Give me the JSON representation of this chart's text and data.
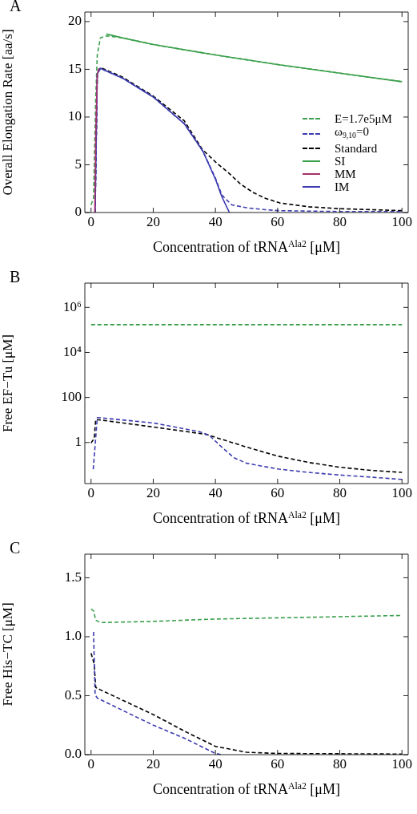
{
  "chart_data": [
    {
      "type": "line",
      "title": "A",
      "xlabel": "Concentration of tRNA$^{Ala2}$ [μM]",
      "ylabel": "Overall Elongation Rate [aa/s]",
      "xlim": [
        -2,
        102
      ],
      "xticks": [
        0,
        20,
        40,
        60,
        80,
        100
      ],
      "ylim": [
        0,
        21
      ],
      "yticks": [
        0,
        5,
        10,
        15,
        20
      ],
      "grid": false,
      "legend": "right",
      "series": [
        {
          "name": "E=1.7e5μM",
          "color": "#3ba04c",
          "line_style": "dashed",
          "x": [
            0,
            0.8,
            1.5,
            2,
            3,
            5,
            10,
            20,
            40,
            60,
            80,
            100
          ],
          "values": [
            0.8,
            1.5,
            12,
            16.5,
            18.3,
            18.5,
            18.3,
            17.6,
            16.5,
            15.5,
            14.6,
            13.7
          ]
        },
        {
          "name": "ω$_{9,10}$=0",
          "color": "#3c3cb0",
          "line_style": "dashed",
          "x": [
            1.3,
            2,
            3,
            10,
            20,
            30,
            36,
            40,
            42,
            43,
            45.3,
            50,
            56,
            60,
            80,
            100
          ],
          "values": [
            0,
            14.5,
            15.1,
            14.1,
            12.1,
            9.3,
            6.4,
            3.6,
            1.9,
            1.5,
            0.8,
            0.5,
            0.3,
            0.2,
            0.1,
            0.1
          ]
        },
        {
          "name": "Standard",
          "color": "#000000",
          "line_style": "dashed",
          "x": [
            1.3,
            2,
            3,
            10,
            20,
            30,
            35.8,
            40,
            44.4,
            48,
            52.1,
            56,
            60.7,
            70,
            80,
            90,
            100
          ],
          "values": [
            0,
            14.5,
            15.2,
            14.2,
            12.2,
            9.6,
            6.6,
            5.3,
            4.1,
            3.0,
            2.1,
            1.5,
            1.0,
            0.6,
            0.4,
            0.3,
            0.2
          ]
        },
        {
          "name": "SI",
          "color": "#3ba04c",
          "line_style": "solid",
          "x": [
            4.9,
            10,
            20,
            40,
            60,
            80,
            100
          ],
          "values": [
            18.7,
            18.3,
            17.6,
            16.5,
            15.5,
            14.6,
            13.7
          ]
        },
        {
          "name": "MM",
          "color": "#a8306c",
          "line_style": "solid",
          "x": [
            1.2,
            1.5,
            2,
            2.5
          ],
          "values": [
            0,
            8,
            14.5,
            15.1
          ]
        },
        {
          "name": "IM",
          "color": "#3c3cb0",
          "line_style": "solid",
          "x": [
            1.3,
            2,
            3,
            10,
            20,
            30,
            36,
            40,
            42,
            44.5
          ],
          "values": [
            0,
            14.5,
            15.1,
            14.1,
            12.1,
            9.3,
            6.4,
            3.5,
            1.7,
            0
          ]
        }
      ]
    },
    {
      "type": "line",
      "title": "B",
      "xlabel": "Concentration of tRNA$^{Ala2}$ [μM]",
      "ylabel": "Free EF−Tu [μM]",
      "log": "y",
      "xlim": [
        -2,
        102
      ],
      "xticks": [
        0,
        20,
        40,
        60,
        80,
        100
      ],
      "ylim": [
        0.015,
        12000000
      ],
      "yticks": [
        1,
        100,
        {
          "value": 10000,
          "label": "10⁴"
        },
        {
          "value": 1000000,
          "label": "10⁶"
        }
      ],
      "grid": false,
      "series": [
        {
          "color": "#3ba04c",
          "line_style": "dashed",
          "x": [
            0,
            100
          ],
          "values": [
            170000,
            170000
          ]
        },
        {
          "color": "#3c3cb0",
          "line_style": "dashed",
          "x": [
            0.7,
            2,
            3,
            20,
            35,
            38,
            42,
            46,
            50,
            60,
            70,
            80,
            90,
            100
          ],
          "values": [
            0.065,
            12.7,
            12.5,
            7.4,
            3,
            2.1,
            0.63,
            0.21,
            0.12,
            0.067,
            0.047,
            0.036,
            0.029,
            0.023
          ]
        },
        {
          "color": "#000000",
          "line_style": "dashed",
          "x": [
            0,
            1,
            1.5,
            3,
            20,
            37,
            40,
            50,
            60,
            70,
            80,
            90,
            100
          ],
          "values": [
            0.95,
            1.5,
            10.5,
            10,
            4.9,
            2.3,
            1.7,
            0.63,
            0.25,
            0.13,
            0.08,
            0.058,
            0.047
          ]
        }
      ]
    },
    {
      "type": "line",
      "title": "C",
      "xlabel": "Concentration of tRNA$^{Ala2}$ [μM]",
      "ylabel": "Free His−TC [μM]",
      "xlim": [
        -2,
        102
      ],
      "xticks": [
        0,
        20,
        40,
        60,
        80,
        100
      ],
      "ylim": [
        0,
        1.7
      ],
      "yticks": [
        {
          "value": 0,
          "label": "0.0"
        },
        0.5,
        {
          "value": 1,
          "label": "1.0"
        },
        1.5
      ],
      "grid": false,
      "series": [
        {
          "color": "#3ba04c",
          "line_style": "dashed",
          "x": [
            0,
            0.8,
            1.5,
            3,
            20,
            40,
            60,
            80,
            100
          ],
          "values": [
            1.235,
            1.22,
            1.14,
            1.12,
            1.13,
            1.15,
            1.16,
            1.17,
            1.18
          ]
        },
        {
          "color": "#3c3cb0",
          "line_style": "dashed",
          "x": [
            0.8,
            1.3,
            2,
            20,
            30,
            40,
            42
          ],
          "values": [
            1.04,
            0.51,
            0.48,
            0.25,
            0.14,
            0.01,
            0
          ]
        },
        {
          "color": "#000000",
          "line_style": "dashed",
          "x": [
            0,
            1,
            1.5,
            3,
            20,
            30,
            40,
            50,
            60,
            100
          ],
          "values": [
            0.86,
            0.77,
            0.57,
            0.55,
            0.34,
            0.2,
            0.07,
            0.02,
            0.01,
            0.005
          ]
        }
      ]
    }
  ]
}
